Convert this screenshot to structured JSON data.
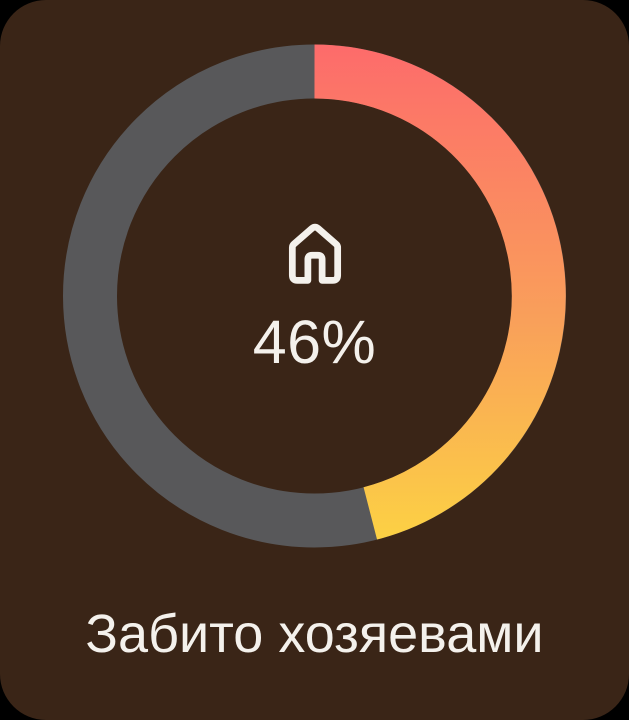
{
  "card": {
    "page_background_color": "#000000",
    "background_color": "#3A2517",
    "text_color": "#F4F1EC",
    "title": "Забито хозяевами"
  },
  "gauge": {
    "percent_label": "46%",
    "center_icon": "home-icon",
    "icon_color": "#F4F1EC",
    "track_color": "#58585A"
  },
  "chart_data": {
    "type": "pie",
    "variant": "donut-gauge",
    "title": "Забито хозяевами",
    "labels": [
      "Забито хозяевами",
      ""
    ],
    "values": [
      46,
      54
    ],
    "unit": "%",
    "center_label": "46%",
    "start_angle_deg": 0,
    "direction": "clockwise",
    "legend": "none",
    "track_color": "#58585A",
    "progress_gradient": [
      {
        "offset": 0,
        "color": "#FD6B6B"
      },
      {
        "offset": 0.55,
        "color": "#F9A05A"
      },
      {
        "offset": 1,
        "color": "#FCD343"
      }
    ]
  }
}
